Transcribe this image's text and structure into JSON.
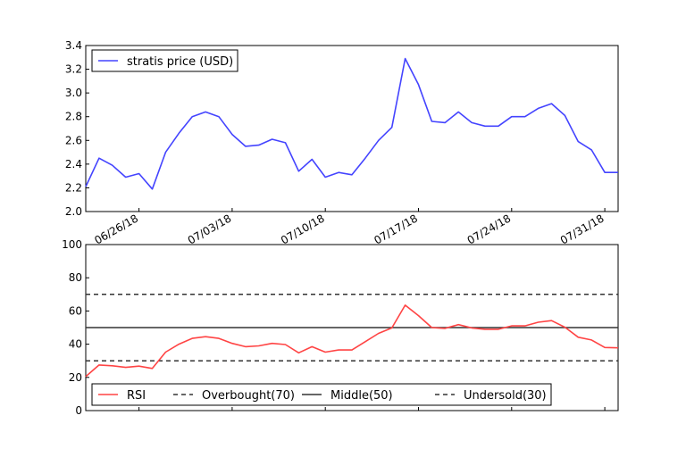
{
  "chart_data": [
    {
      "type": "line",
      "x": [
        "06/22/18",
        "06/23/18",
        "06/24/18",
        "06/25/18",
        "06/26/18",
        "06/27/18",
        "06/28/18",
        "06/29/18",
        "06/30/18",
        "07/01/18",
        "07/02/18",
        "07/03/18",
        "07/04/18",
        "07/05/18",
        "07/06/18",
        "07/07/18",
        "07/08/18",
        "07/09/18",
        "07/10/18",
        "07/11/18",
        "07/12/18",
        "07/13/18",
        "07/14/18",
        "07/15/18",
        "07/16/18",
        "07/17/18",
        "07/18/18",
        "07/19/18",
        "07/20/18",
        "07/21/18",
        "07/22/18",
        "07/23/18",
        "07/24/18",
        "07/25/18",
        "07/26/18",
        "07/27/18",
        "07/28/18",
        "07/29/18",
        "07/30/18",
        "07/31/18",
        "08/01/18"
      ],
      "series": [
        {
          "name": "stratis price (USD)",
          "color": "#4444ff",
          "values": [
            2.21,
            2.45,
            2.39,
            2.29,
            2.32,
            2.19,
            2.5,
            2.66,
            2.8,
            2.84,
            2.8,
            2.65,
            2.55,
            2.56,
            2.61,
            2.58,
            2.34,
            2.44,
            2.29,
            2.33,
            2.31,
            2.45,
            2.6,
            2.71,
            3.29,
            3.07,
            2.76,
            2.75,
            2.84,
            2.75,
            2.72,
            2.72,
            2.8,
            2.8,
            2.87,
            2.91,
            2.81,
            2.59,
            2.52,
            2.33,
            2.33
          ]
        }
      ],
      "ylim": [
        2.0,
        3.4
      ],
      "yticks": [
        "2.0",
        "2.2",
        "2.4",
        "2.6",
        "2.8",
        "3.0",
        "3.2",
        "3.4"
      ],
      "xtick_labels": [
        "06/26/18",
        "07/03/18",
        "07/10/18",
        "07/17/18",
        "07/24/18",
        "07/31/18"
      ],
      "legend_position": "top-left",
      "grid": false
    },
    {
      "type": "line",
      "series": [
        {
          "name": "RSI",
          "color": "#ff4444",
          "values": [
            20.5,
            27.5,
            27,
            26,
            26.8,
            25.4,
            35.2,
            40,
            43.5,
            44.5,
            43.5,
            40.5,
            38.5,
            39,
            40.5,
            39.8,
            34.8,
            38.5,
            35.2,
            36.5,
            36.5,
            41.5,
            46.5,
            49.8,
            63.5,
            57.2,
            50,
            49.5,
            51.8,
            49.8,
            49,
            49,
            51,
            51,
            53.2,
            54.2,
            50.2,
            44.2,
            42.5,
            38,
            37.8
          ]
        }
      ],
      "reference_lines": [
        {
          "name": "Overbought(70)",
          "value": 70,
          "style": "dashed",
          "color": "#333333"
        },
        {
          "name": "Middle(50)",
          "value": 50,
          "style": "solid",
          "color": "#333333"
        },
        {
          "name": "Undersold(30)",
          "value": 30,
          "style": "dashed",
          "color": "#333333"
        }
      ],
      "ylim": [
        0,
        100
      ],
      "yticks": [
        "0",
        "20",
        "40",
        "60",
        "80",
        "100"
      ],
      "legend_position": "bottom",
      "grid": false
    }
  ]
}
